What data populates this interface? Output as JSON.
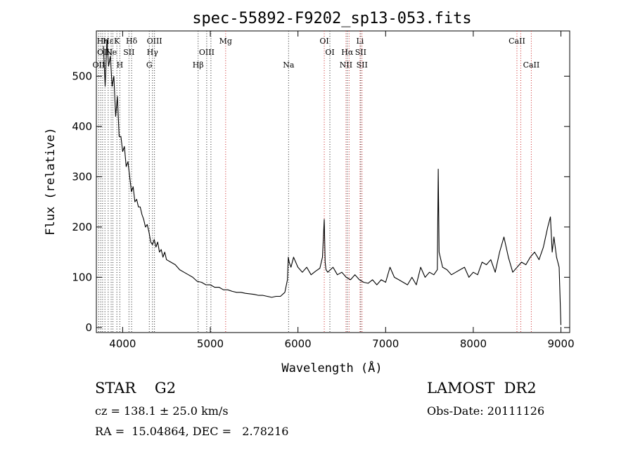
{
  "chart_data": {
    "type": "line",
    "title": "spec-55892-F9202_sp13-053.fits",
    "xlabel": "Wavelength (Å)",
    "ylabel": "Flux (relative)",
    "xlim": [
      3700,
      9100
    ],
    "ylim": [
      -10,
      590
    ],
    "xticks": [
      4000,
      5000,
      6000,
      7000,
      8000,
      9000
    ],
    "yticks": [
      0,
      100,
      200,
      300,
      400,
      500
    ],
    "grid": false,
    "series": [
      {
        "x": [
          3780,
          3800,
          3820,
          3840,
          3860,
          3880,
          3900,
          3920,
          3940,
          3960,
          3980,
          4000,
          4020,
          4040,
          4060,
          4080,
          4100,
          4120,
          4140,
          4160,
          4180,
          4200,
          4220,
          4240,
          4260,
          4280,
          4300,
          4320,
          4340,
          4360,
          4380,
          4400,
          4420,
          4440,
          4460,
          4480,
          4500,
          4550,
          4600,
          4650,
          4700,
          4750,
          4800,
          4850,
          4900,
          4950,
          5000,
          5050,
          5100,
          5150,
          5200,
          5250,
          5300,
          5350,
          5400,
          5450,
          5500,
          5550,
          5600,
          5650,
          5700,
          5750,
          5800,
          5850,
          5880,
          5890,
          5900,
          5920,
          5950,
          6000,
          6050,
          6100,
          6150,
          6200,
          6250,
          6280,
          6300,
          6310,
          6320,
          6340,
          6400,
          6450,
          6500,
          6550,
          6600,
          6650,
          6700,
          6750,
          6800,
          6850,
          6900,
          6950,
          7000,
          7050,
          7100,
          7150,
          7200,
          7250,
          7300,
          7350,
          7400,
          7450,
          7500,
          7550,
          7590,
          7600,
          7610,
          7650,
          7700,
          7750,
          7800,
          7850,
          7900,
          7950,
          8000,
          8050,
          8100,
          8150,
          8200,
          8250,
          8300,
          8350,
          8400,
          8450,
          8500,
          8550,
          8600,
          8650,
          8700,
          8750,
          8800,
          8850,
          8880,
          8900,
          8920,
          8950,
          8980,
          8990,
          9000
        ],
        "y": [
          560,
          480,
          570,
          520,
          540,
          480,
          500,
          420,
          460,
          380,
          380,
          350,
          360,
          320,
          330,
          300,
          270,
          280,
          250,
          255,
          240,
          240,
          225,
          215,
          200,
          205,
          190,
          170,
          165,
          175,
          160,
          170,
          150,
          155,
          140,
          150,
          135,
          130,
          125,
          115,
          110,
          105,
          100,
          92,
          90,
          85,
          85,
          80,
          80,
          75,
          75,
          72,
          70,
          70,
          68,
          67,
          66,
          64,
          64,
          62,
          60,
          62,
          62,
          70,
          95,
          140,
          130,
          120,
          140,
          120,
          110,
          120,
          105,
          112,
          118,
          140,
          215,
          130,
          115,
          110,
          120,
          105,
          110,
          100,
          95,
          105,
          95,
          90,
          88,
          95,
          85,
          95,
          90,
          120,
          100,
          95,
          90,
          85,
          100,
          85,
          120,
          100,
          110,
          105,
          115,
          315,
          150,
          120,
          115,
          105,
          110,
          115,
          120,
          100,
          110,
          105,
          130,
          125,
          135,
          110,
          150,
          180,
          140,
          110,
          120,
          130,
          125,
          140,
          150,
          135,
          160,
          200,
          220,
          150,
          180,
          140,
          120,
          60,
          5
        ],
        "color": "#000000"
      }
    ],
    "line_markers": [
      {
        "x": 3727,
        "color": "#222222",
        "label": "OII",
        "row": 3
      },
      {
        "x": 3750,
        "color": "#222222",
        "label": "",
        "row": 0
      },
      {
        "x": 3771,
        "color": "#222222",
        "label": "Hη",
        "row": 1
      },
      {
        "x": 3798,
        "color": "#222222",
        "label": "OIII",
        "row": 2
      },
      {
        "x": 3835,
        "color": "#222222",
        "label": "Hε",
        "row": 1
      },
      {
        "x": 3869,
        "color": "#222222",
        "label": "Ne",
        "row": 2
      },
      {
        "x": 3889,
        "color": "#222222",
        "label": "",
        "row": 0
      },
      {
        "x": 3934,
        "color": "#222222",
        "label": "K",
        "row": 1
      },
      {
        "x": 3968,
        "color": "#222222",
        "label": "H",
        "row": 3
      },
      {
        "x": 4072,
        "color": "#222222",
        "label": "SII",
        "row": 2
      },
      {
        "x": 4102,
        "color": "#222222",
        "label": "Hδ",
        "row": 1
      },
      {
        "x": 4304,
        "color": "#222222",
        "label": "G",
        "row": 3
      },
      {
        "x": 4340,
        "color": "#222222",
        "label": "Hγ",
        "row": 2
      },
      {
        "x": 4363,
        "color": "#222222",
        "label": "OIII",
        "row": 1
      },
      {
        "x": 4861,
        "color": "#222222",
        "label": "Hβ",
        "row": 3
      },
      {
        "x": 4959,
        "color": "#222222",
        "label": "OIII",
        "row": 2
      },
      {
        "x": 5007,
        "color": "#222222",
        "label": "",
        "row": 0
      },
      {
        "x": 5175,
        "color": "#cc2222",
        "label": "Mg",
        "row": 1
      },
      {
        "x": 5893,
        "color": "#222222",
        "label": "Na",
        "row": 3
      },
      {
        "x": 6300,
        "color": "#cc2222",
        "label": "OI",
        "row": 1
      },
      {
        "x": 6364,
        "color": "#222222",
        "label": "OI",
        "row": 2
      },
      {
        "x": 6548,
        "color": "#cc2222",
        "label": "NII",
        "row": 3
      },
      {
        "x": 6563,
        "color": "#222222",
        "label": "Hα",
        "row": 2
      },
      {
        "x": 6583,
        "color": "#cc2222",
        "label": "",
        "row": 0
      },
      {
        "x": 6708,
        "color": "#cc2222",
        "label": "Li",
        "row": 1
      },
      {
        "x": 6716,
        "color": "#222222",
        "label": "SII",
        "row": 2
      },
      {
        "x": 6731,
        "color": "#cc2222",
        "label": "SII",
        "row": 3
      },
      {
        "x": 8498,
        "color": "#cc2222",
        "label": "CaII",
        "row": 1
      },
      {
        "x": 8542,
        "color": "#cc2222",
        "label": "",
        "row": 0
      },
      {
        "x": 8662,
        "color": "#cc2222",
        "label": "CaII",
        "row": 3
      }
    ]
  },
  "footer": {
    "object_class": "STAR    G2",
    "survey": "LAMOST  DR2",
    "redshift": "cz = 138.1 ± 25.0 km/s",
    "obs_date": "Obs-Date: 20111126",
    "coords": "RA =  15.04864, DEC =   2.78216"
  }
}
